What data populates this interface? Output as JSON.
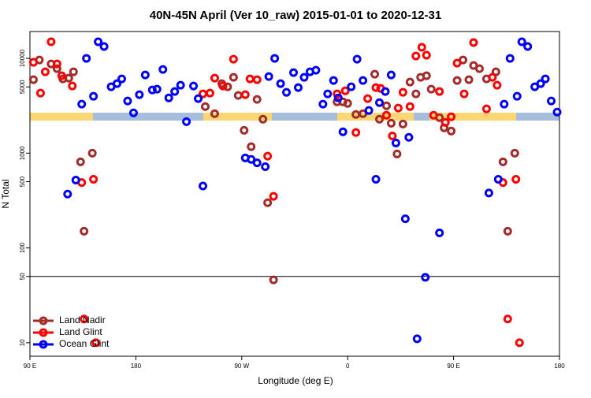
{
  "chart_data": {
    "type": "scatter",
    "title": "40N-45N April (Ver 10_raw)   2015-01-01 to 2020-12-31",
    "xlabel": "Longitude (deg E)",
    "ylabel": "N Total",
    "xlim": [
      90,
      540
    ],
    "xticks": [
      {
        "value": 90,
        "label": "90 E"
      },
      {
        "value": 180,
        "label": "180"
      },
      {
        "value": 270,
        "label": "90 W"
      },
      {
        "value": 360,
        "label": "0"
      },
      {
        "value": 450,
        "label": "90 E"
      },
      {
        "value": 540,
        "label": "180"
      }
    ],
    "ylim": [
      7.2,
      19200
    ],
    "yscale": "log",
    "yticks": [
      10,
      50,
      100,
      500,
      1000,
      5000,
      10000
    ],
    "reference_line": 50,
    "legend": "lower left",
    "series": [
      {
        "name": "Land Nadir",
        "color": "#a52a2a",
        "x": [
          93,
          98,
          108,
          113,
          118,
          123,
          127,
          133,
          136,
          143,
          239,
          247,
          253,
          258,
          263,
          267,
          272,
          278,
          283,
          288,
          292,
          297,
          351,
          356,
          360,
          367,
          373,
          383,
          387,
          393,
          397,
          402,
          407,
          413,
          418,
          422,
          427,
          431,
          438,
          442,
          448,
          453,
          458,
          463,
          467,
          472,
          478,
          486,
          492,
          496,
          502
        ],
        "values": [
          5960,
          9620,
          8740,
          7790,
          6070,
          6190,
          7220,
          810,
          150,
          1000,
          3100,
          2610,
          5410,
          5010,
          6310,
          4060,
          1740,
          1170,
          3690,
          2280,
          300,
          46,
          3480,
          3480,
          3350,
          2560,
          2610,
          6810,
          2280,
          3160,
          2070,
          980,
          2030,
          5620,
          4220,
          6310,
          6560,
          4730,
          2370,
          1850,
          1710,
          5840,
          9620,
          5960,
          8410,
          7790,
          6070,
          7220,
          810,
          150,
          1000
        ]
      },
      {
        "name": "Land Glint",
        "color": "#ff0000",
        "x": [
          93,
          99,
          103,
          108,
          113,
          117,
          126,
          134,
          136,
          144,
          146,
          237,
          243,
          247,
          254,
          263,
          273,
          277,
          283,
          292,
          297,
          351,
          358,
          367,
          377,
          384,
          388,
          393,
          398,
          403,
          407,
          413,
          418,
          423,
          427,
          433,
          438,
          443,
          448,
          453,
          459,
          467,
          478,
          483,
          487,
          492,
          496,
          503,
          506
        ],
        "values": [
          9090,
          4300,
          7220,
          14960,
          8740,
          6560,
          5110,
          490,
          17.8,
          530,
          10,
          4220,
          4300,
          6190,
          5110,
          9810,
          4140,
          6070,
          5960,
          930,
          350,
          4220,
          4550,
          1650,
          3760,
          4920,
          4820,
          2510,
          1520,
          2990,
          4380,
          3100,
          10590,
          13090,
          10800,
          2510,
          4470,
          2110,
          2420,
          8910,
          4220,
          14680,
          2930,
          6310,
          5210,
          490,
          17.8,
          530,
          10
        ]
      },
      {
        "name": "Ocean Glint",
        "color": "#0000ff",
        "x": [
          122,
          129,
          134,
          138,
          144,
          148,
          153,
          159,
          164,
          168,
          173,
          178,
          183,
          188,
          194,
          198,
          203,
          208,
          213,
          218,
          223,
          229,
          233,
          237,
          273,
          278,
          283,
          290,
          293,
          298,
          303,
          308,
          314,
          318,
          323,
          328,
          333,
          339,
          343,
          348,
          352,
          356,
          363,
          368,
          373,
          378,
          384,
          387,
          392,
          397,
          401,
          409,
          412,
          419,
          426,
          438,
          480,
          488,
          493,
          498,
          504,
          508,
          513,
          519,
          524,
          528,
          533,
          538
        ],
        "values": [
          370,
          520,
          3290,
          10000,
          3980,
          14960,
          13340,
          5010,
          5410,
          6070,
          3550,
          2660,
          4140,
          6680,
          4640,
          4730,
          7640,
          3830,
          4470,
          5210,
          2150,
          5110,
          3760,
          450,
          890,
          860,
          790,
          720,
          6430,
          10000,
          5410,
          4380,
          7080,
          4920,
          6310,
          7220,
          7500,
          3290,
          4220,
          5840,
          3830,
          1680,
          5010,
          9810,
          5840,
          2820,
          530,
          3410,
          4470,
          6680,
          1280,
          203,
          1470,
          11.0,
          49,
          144,
          380,
          530,
          3290,
          10000,
          3980,
          14960,
          13340,
          5010,
          5410,
          6070,
          3550,
          2710
        ]
      }
    ]
  }
}
